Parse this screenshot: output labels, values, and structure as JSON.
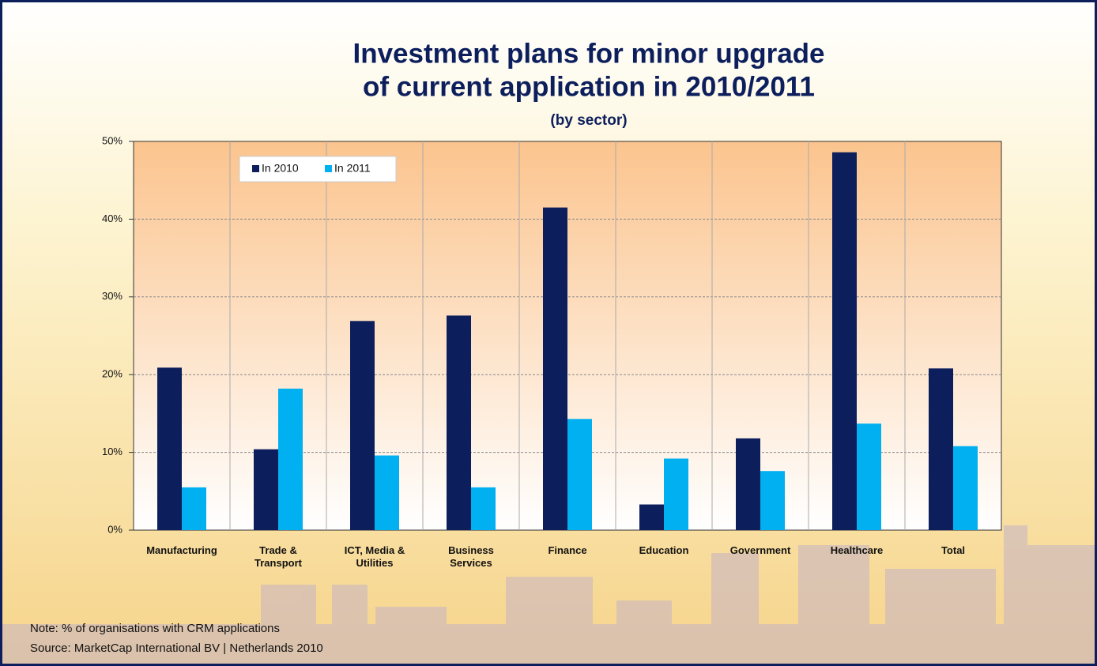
{
  "chart_data": {
    "type": "bar",
    "title": "Investment plans for minor upgrade",
    "title_line2": "of current application in 2010/2011",
    "subtitle": "(by sector)",
    "categories": [
      "Manufacturing",
      "Trade &\nTransport",
      "ICT, Media &\nUtilities",
      "Business\nServices",
      "Finance",
      "Education",
      "Government",
      "Healthcare",
      "Total"
    ],
    "series": [
      {
        "name": "In 2010",
        "color": "#0c1f5c",
        "values": [
          20.9,
          10.4,
          26.9,
          27.6,
          41.5,
          3.3,
          11.8,
          48.6,
          20.8
        ]
      },
      {
        "name": "In 2011",
        "color": "#00b0f0",
        "values": [
          5.5,
          18.2,
          9.6,
          5.5,
          14.3,
          9.2,
          7.6,
          13.7,
          10.8
        ]
      }
    ],
    "ylim": [
      0,
      50
    ],
    "yticks": [
      {
        "value": 0,
        "label": "0%"
      },
      {
        "value": 10,
        "label": "10%"
      },
      {
        "value": 20,
        "label": "20%"
      },
      {
        "value": 30,
        "label": "30%"
      },
      {
        "value": 40,
        "label": "40%"
      },
      {
        "value": 50,
        "label": "50%"
      }
    ],
    "grid": true,
    "legend": "top-left",
    "note": "Note: % of organisations with CRM applications",
    "source": "Source: MarketCap International BV | Netherlands 2010"
  }
}
